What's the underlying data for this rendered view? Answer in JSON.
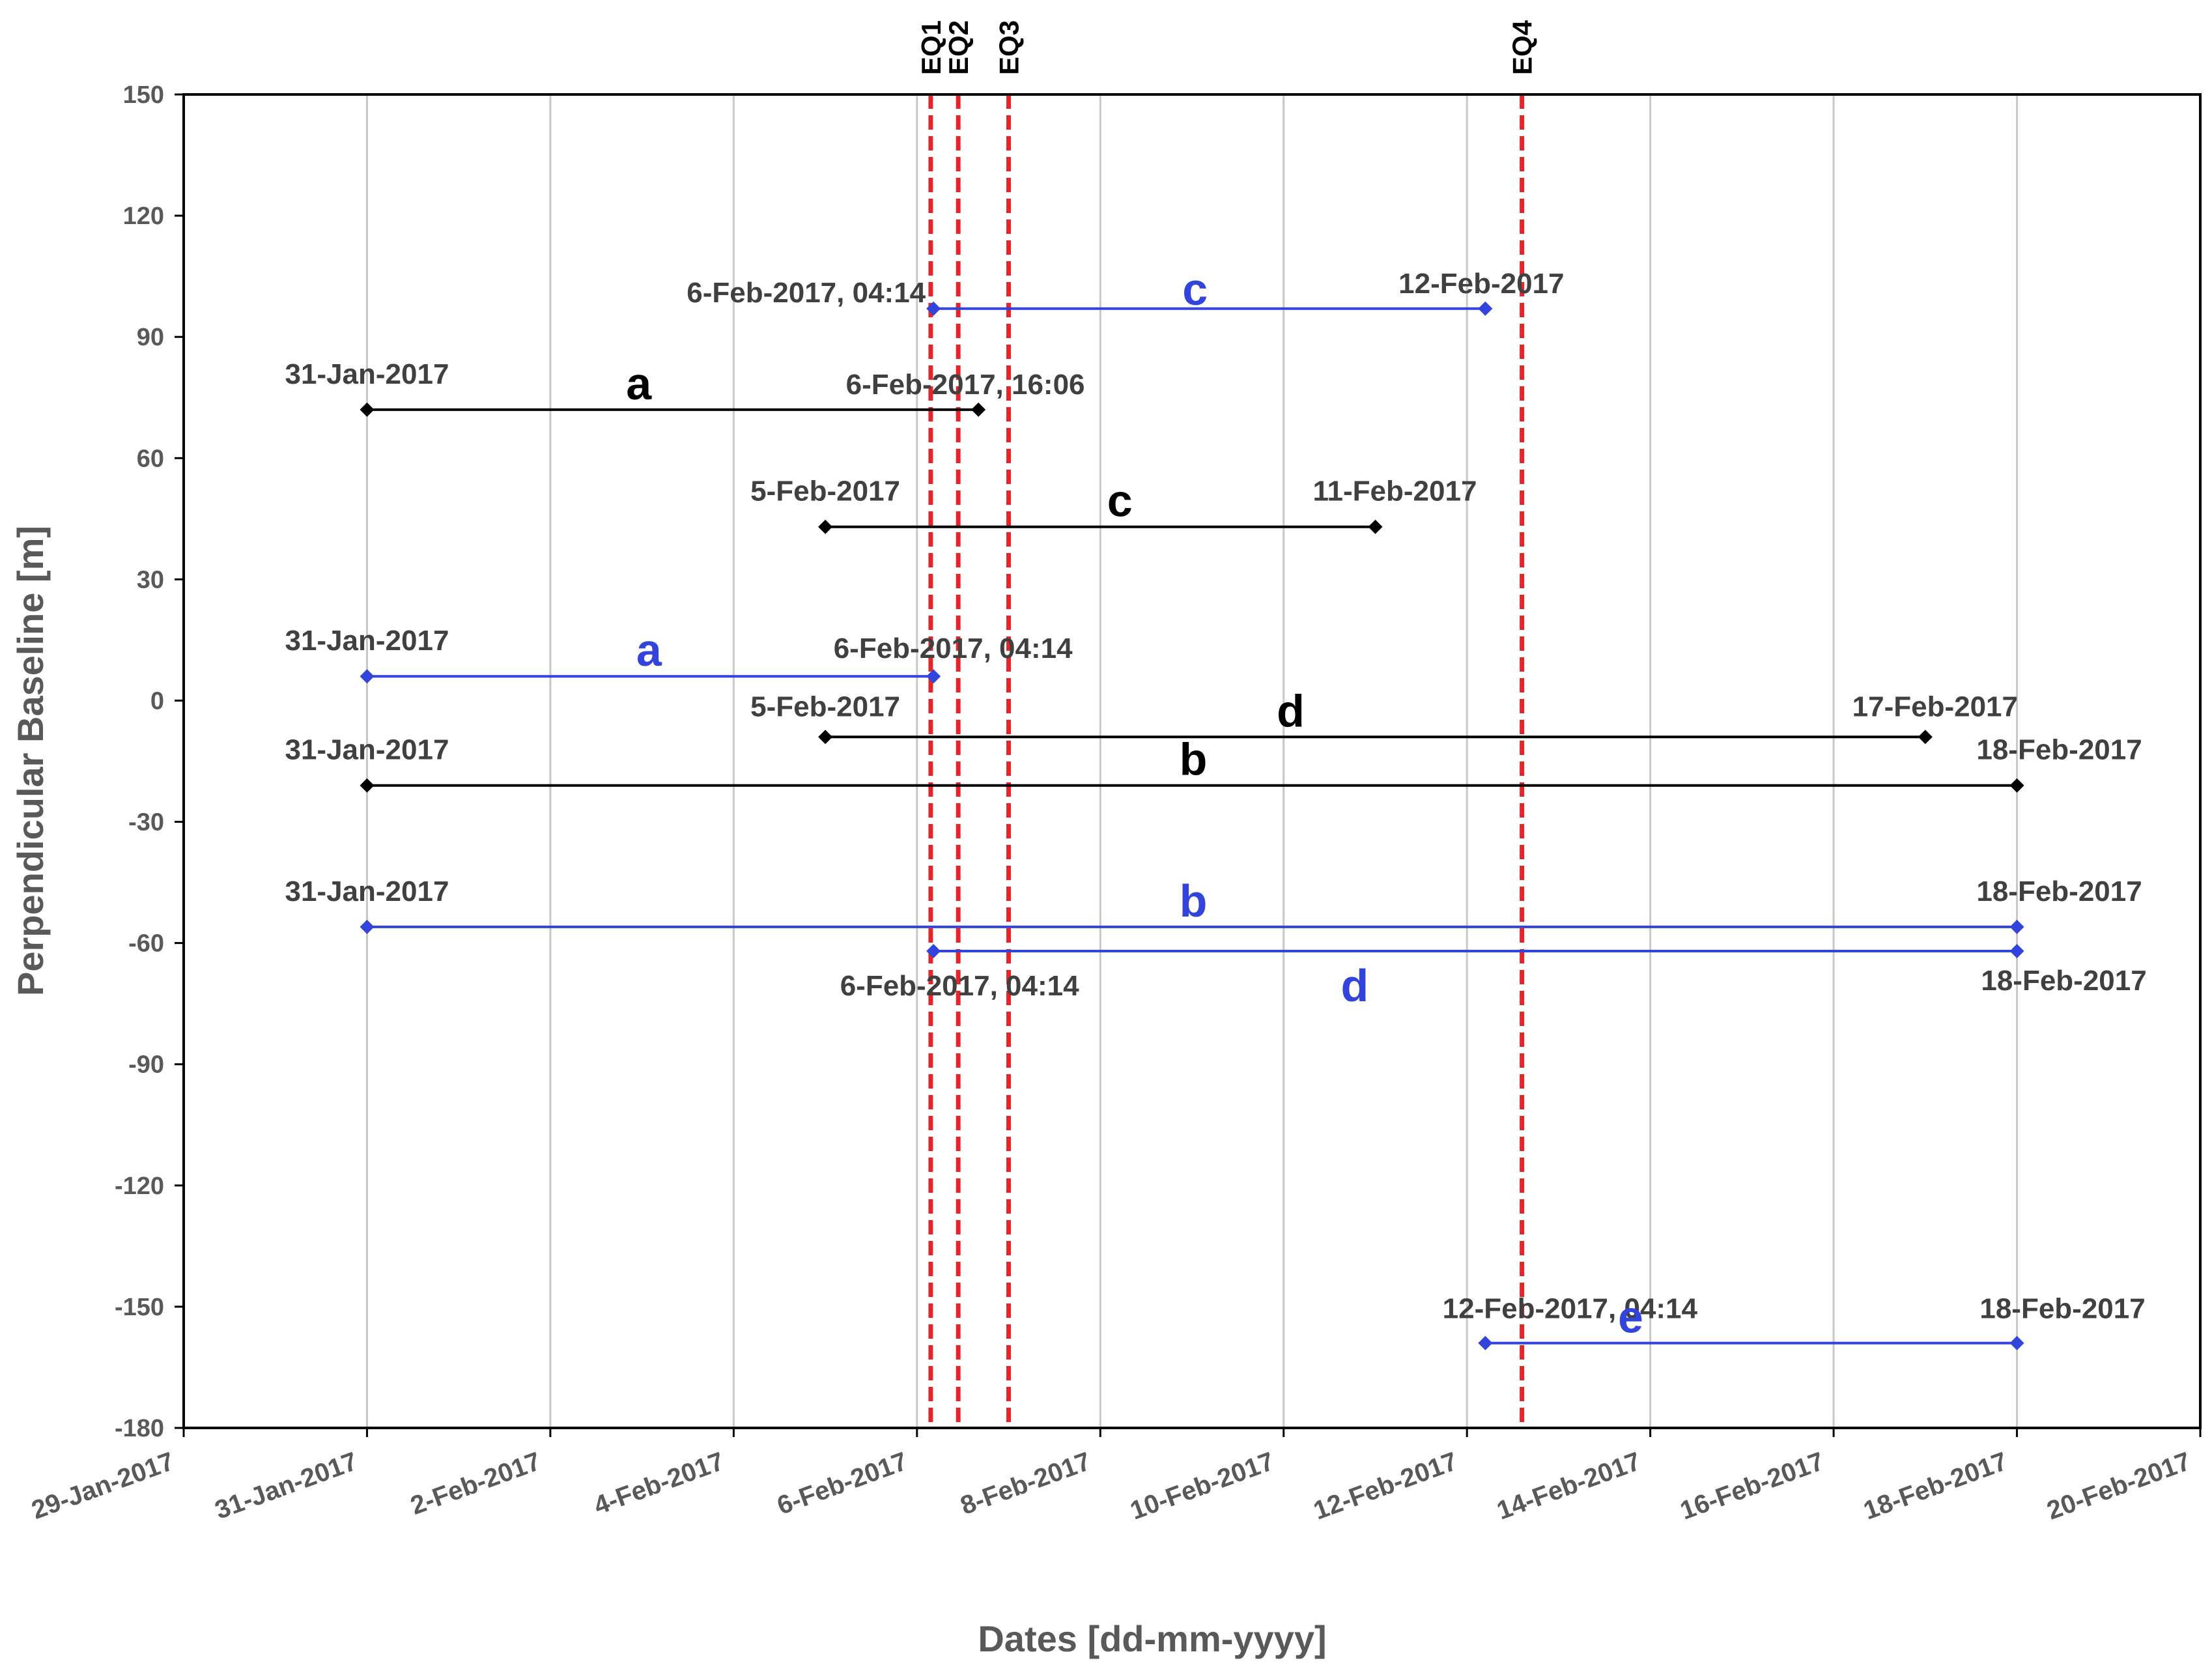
{
  "chart_data": {
    "type": "line",
    "xlabel": "Dates [dd-mm-yyyy]",
    "ylabel": "Perpendicular Baseline [m]",
    "ylim": [
      -180,
      150
    ],
    "yticks": [
      "150",
      "120",
      "90",
      "60",
      "30",
      "0",
      "-30",
      "-60",
      "-90",
      "-120",
      "-150",
      "-180"
    ],
    "xlim": [
      "2017-01-29",
      "2017-02-20"
    ],
    "xtick_labels": [
      "29-Jan-2017",
      "31-Jan-2017",
      "2-Feb-2017",
      "4-Feb-2017",
      "6-Feb-2017",
      "8-Feb-2017",
      "10-Feb-2017",
      "12-Feb-2017",
      "14-Feb-2017",
      "16-Feb-2017",
      "18-Feb-2017",
      "20-Feb-2017"
    ],
    "grid": "vertical",
    "earthquakes": [
      {
        "name": "EQ1",
        "day": 8.15
      },
      {
        "name": "EQ2",
        "day": 8.45
      },
      {
        "name": "EQ3",
        "day": 9.0
      },
      {
        "name": "EQ4",
        "day": 14.6
      }
    ],
    "colors": {
      "black": "#000000",
      "blue": "#3344dd",
      "eq": "#e8232a",
      "grid": "#c8c8c8",
      "tick": "#595959"
    },
    "series": [
      {
        "name": "c",
        "color": "blue",
        "y": 97,
        "x_days": [
          8.18,
          14.2
        ],
        "start_label": "6-Feb-2017, 04:14",
        "end_label": "12-Feb-2017"
      },
      {
        "name": "a",
        "color": "black",
        "y": 72,
        "x_days": [
          2,
          8.67
        ],
        "start_label": "31-Jan-2017",
        "end_label": "6-Feb-2017, 16:06"
      },
      {
        "name": "c",
        "color": "black",
        "y": 43,
        "x_days": [
          7,
          13
        ],
        "start_label": "5-Feb-2017",
        "end_label": "11-Feb-2017"
      },
      {
        "name": "a",
        "color": "blue",
        "y": 6,
        "x_days": [
          2,
          8.18
        ],
        "start_label": "31-Jan-2017",
        "end_label": "6-Feb-2017, 04:14"
      },
      {
        "name": "d",
        "color": "black",
        "y": -9,
        "x_days": [
          7,
          19
        ],
        "start_label": "5-Feb-2017",
        "end_label": "17-Feb-2017"
      },
      {
        "name": "b",
        "color": "black",
        "y": -21,
        "x_days": [
          2,
          20
        ],
        "start_label": "31-Jan-2017",
        "end_label": "18-Feb-2017"
      },
      {
        "name": "b",
        "color": "blue",
        "y": -56,
        "x_days": [
          2,
          20
        ],
        "start_label": "31-Jan-2017",
        "end_label": "18-Feb-2017"
      },
      {
        "name": "d",
        "color": "blue",
        "y": -62,
        "x_days": [
          8.18,
          20
        ],
        "start_label": "6-Feb-2017, 04:14",
        "end_label": "18-Feb-2017"
      },
      {
        "name": "e",
        "color": "blue",
        "y": -159,
        "x_days": [
          14.2,
          20
        ],
        "start_label": "12-Feb-2017, 04:14",
        "end_label": "18-Feb-2017"
      }
    ]
  }
}
